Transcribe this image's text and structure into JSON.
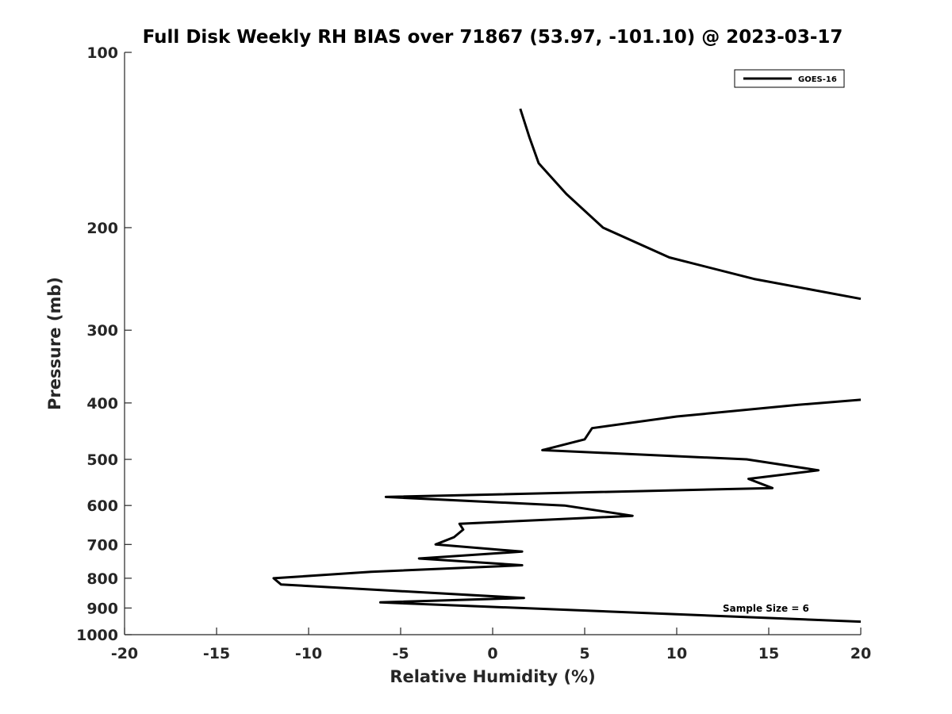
{
  "chart_data": {
    "type": "line",
    "title": "Full Disk Weekly RH BIAS over 71867 (53.97, -101.10) @ 2023-03-17",
    "xlabel": "Relative Humidity (%)",
    "ylabel": "Pressure (mb)",
    "xlim": [
      -20,
      20
    ],
    "ylim": [
      100,
      1000
    ],
    "y_scale": "log",
    "y_reversed": true,
    "x_ticks": [
      -20,
      -15,
      -10,
      -5,
      0,
      5,
      10,
      15,
      20
    ],
    "x_tick_labels": [
      "-20",
      "-15",
      "-10",
      "-5",
      "0",
      "5",
      "10",
      "15",
      "20"
    ],
    "y_ticks": [
      100,
      200,
      300,
      400,
      500,
      600,
      700,
      800,
      900,
      1000
    ],
    "y_tick_labels": [
      "100",
      "200",
      "300",
      "400",
      "500",
      "600",
      "700",
      "800",
      "900",
      "1000"
    ],
    "grid": false,
    "legend_position": "top-right",
    "annotation": "Sample Size = 6",
    "series": [
      {
        "name": "GOES-16",
        "color": "#000000",
        "x": [
          1.5,
          2.0,
          2.5,
          4.0,
          6.0,
          9.6,
          14.2,
          20.0,
          null,
          20.0,
          16.6,
          10.0,
          5.4,
          5.0,
          2.7,
          13.8,
          17.7,
          13.9,
          15.2,
          -5.8,
          3.9,
          7.6,
          -1.8,
          -1.6,
          -2.1,
          -3.1,
          1.6,
          -4.0,
          1.6,
          -6.6,
          -11.9,
          -11.5,
          1.7,
          -6.1,
          20.0
        ],
        "y": [
          125,
          140,
          155,
          175,
          200,
          225,
          245,
          265,
          null,
          395,
          403,
          422,
          442,
          462,
          482,
          500,
          522,
          540,
          560,
          580,
          600,
          625,
          645,
          660,
          680,
          700,
          720,
          740,
          760,
          780,
          800,
          820,
          865,
          880,
          950
        ]
      }
    ]
  }
}
